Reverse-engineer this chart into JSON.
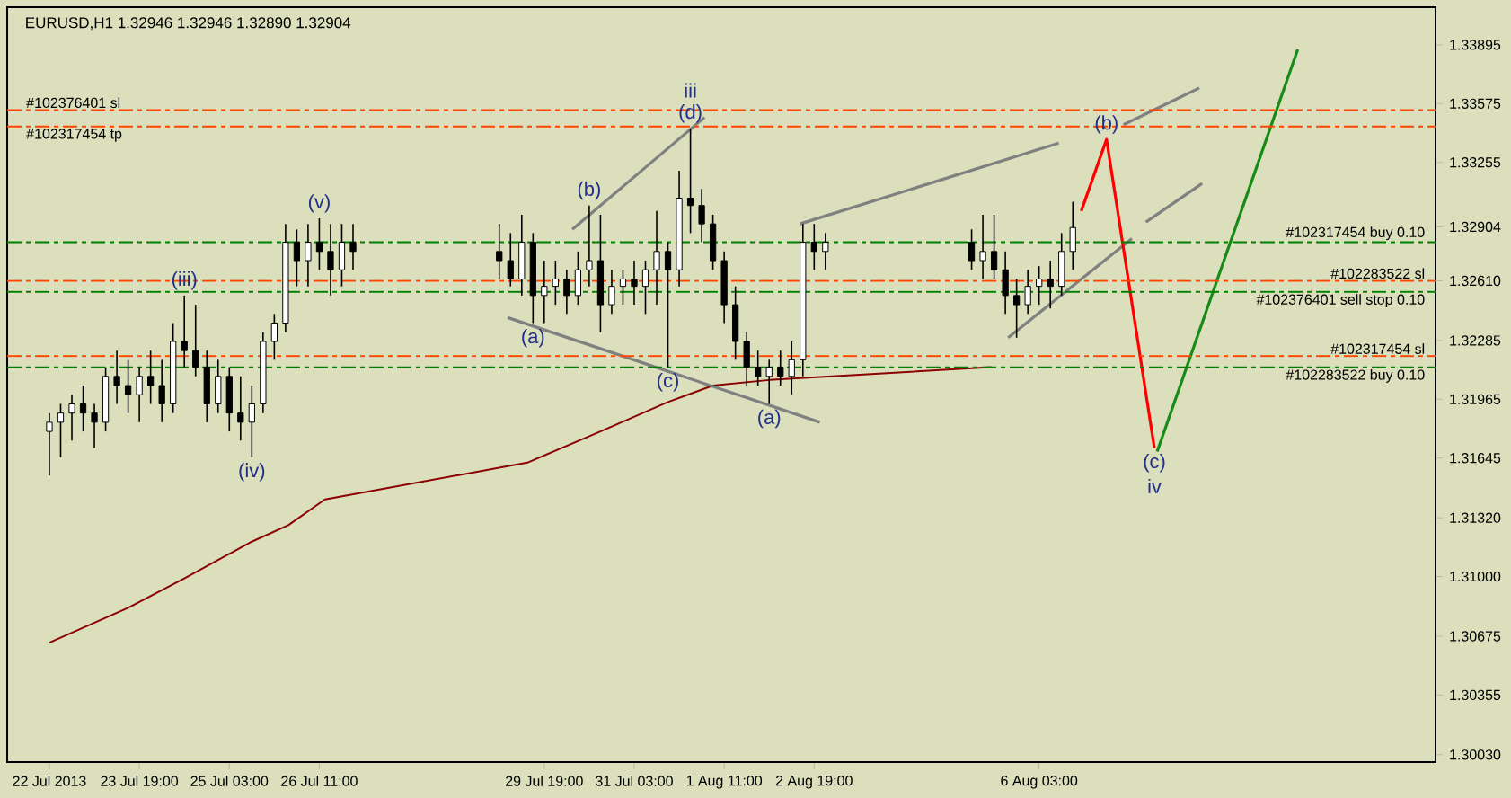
{
  "chart_data": {
    "type": "candlestick",
    "title": "EURUSD,H1  1.32946 1.32946 1.32890 1.32904",
    "color": "#000000",
    "x": [
      "2013-07-22T11:00",
      "2013-07-22T15:00",
      "2013-07-22T19:00",
      "2013-07-22T23:00",
      "2013-07-23T03:00",
      "2013-07-23T07:00",
      "2013-07-23T11:00",
      "2013-07-23T15:00",
      "2013-07-23T19:00",
      "2013-07-23T23:00",
      "2013-07-24T03:00",
      "2013-07-24T07:00",
      "2013-07-24T11:00",
      "2013-07-24T15:00",
      "2013-07-24T19:00",
      "2013-07-24T23:00",
      "2013-07-25T03:00",
      "2013-07-25T07:00",
      "2013-07-25T11:00",
      "2013-07-25T15:00",
      "2013-07-25T19:00",
      "2013-07-25T23:00",
      "2013-07-26T03:00",
      "2013-07-26T07:00",
      "2013-07-26T11:00",
      "2013-07-26T15:00",
      "2013-07-26T19:00",
      "2013-07-26T23:00",
      "2013-07-29T03:00",
      "2013-07-29T07:00",
      "2013-07-29T11:00",
      "2013-07-29T15:00",
      "2013-07-29T19:00",
      "2013-07-29T23:00",
      "2013-07-30T03:00",
      "2013-07-30T07:00",
      "2013-07-30T11:00",
      "2013-07-30T15:00",
      "2013-07-30T19:00",
      "2013-07-30T23:00",
      "2013-07-31T03:00",
      "2013-07-31T07:00",
      "2013-07-31T11:00",
      "2013-07-31T15:00",
      "2013-07-31T19:00",
      "2013-07-31T23:00",
      "2013-08-01T03:00",
      "2013-08-01T07:00",
      "2013-08-01T11:00",
      "2013-08-01T15:00",
      "2013-08-01T19:00",
      "2013-08-01T23:00",
      "2013-08-02T03:00",
      "2013-08-02T07:00",
      "2013-08-02T11:00",
      "2013-08-02T15:00",
      "2013-08-02T19:00",
      "2013-08-02T23:00",
      "2013-08-05T03:00",
      "2013-08-05T07:00",
      "2013-08-05T11:00",
      "2013-08-05T15:00",
      "2013-08-05T19:00",
      "2013-08-05T23:00",
      "2013-08-06T03:00",
      "2013-08-06T07:00",
      "2013-08-06T11:00",
      "2013-08-06T15:00"
    ],
    "ohlc": [
      [
        1.3179,
        1.3189,
        1.3155,
        1.3184
      ],
      [
        1.3184,
        1.3194,
        1.3165,
        1.3189
      ],
      [
        1.3189,
        1.3199,
        1.3174,
        1.3194
      ],
      [
        1.3194,
        1.3204,
        1.3179,
        1.3189
      ],
      [
        1.3189,
        1.3194,
        1.317,
        1.3184
      ],
      [
        1.3184,
        1.3214,
        1.3179,
        1.3209
      ],
      [
        1.3209,
        1.3223,
        1.3194,
        1.3204
      ],
      [
        1.3204,
        1.3218,
        1.3189,
        1.3199
      ],
      [
        1.3199,
        1.3214,
        1.3184,
        1.3209
      ],
      [
        1.3209,
        1.3223,
        1.3194,
        1.3204
      ],
      [
        1.3204,
        1.3218,
        1.3184,
        1.3194
      ],
      [
        1.3194,
        1.3238,
        1.3189,
        1.3228
      ],
      [
        1.3228,
        1.3253,
        1.3214,
        1.3223
      ],
      [
        1.3223,
        1.3248,
        1.3209,
        1.3214
      ],
      [
        1.3214,
        1.3223,
        1.3184,
        1.3194
      ],
      [
        1.3194,
        1.3218,
        1.3189,
        1.3209
      ],
      [
        1.3209,
        1.3214,
        1.3179,
        1.3189
      ],
      [
        1.3189,
        1.3209,
        1.3174,
        1.3184
      ],
      [
        1.3184,
        1.3204,
        1.3165,
        1.3194
      ],
      [
        1.3194,
        1.3233,
        1.3189,
        1.3228
      ],
      [
        1.3228,
        1.3243,
        1.3218,
        1.3238
      ],
      [
        1.3238,
        1.3292,
        1.3233,
        1.3282
      ],
      [
        1.3282,
        1.3289,
        1.3258,
        1.3272
      ],
      [
        1.3272,
        1.3292,
        1.3258,
        1.3282
      ],
      [
        1.3282,
        1.3295,
        1.3267,
        1.3277
      ],
      [
        1.3277,
        1.3292,
        1.3253,
        1.3267
      ],
      [
        1.3267,
        1.3292,
        1.3258,
        1.3282
      ],
      [
        1.3282,
        1.3292,
        1.3267,
        1.3277
      ],
      [
        1.3277,
        1.3292,
        1.3262,
        1.3272
      ],
      [
        1.3272,
        1.3287,
        1.3258,
        1.3262
      ],
      [
        1.3262,
        1.3297,
        1.3253,
        1.3282
      ],
      [
        1.3282,
        1.3287,
        1.3238,
        1.3253
      ],
      [
        1.3253,
        1.3272,
        1.3238,
        1.3258
      ],
      [
        1.3258,
        1.3272,
        1.3248,
        1.3262
      ],
      [
        1.3262,
        1.3267,
        1.3243,
        1.3253
      ],
      [
        1.3253,
        1.3277,
        1.3248,
        1.3267
      ],
      [
        1.3267,
        1.3302,
        1.3258,
        1.3272
      ],
      [
        1.3272,
        1.3297,
        1.3233,
        1.3248
      ],
      [
        1.3248,
        1.3267,
        1.3243,
        1.3258
      ],
      [
        1.3258,
        1.3267,
        1.3248,
        1.3262
      ],
      [
        1.3262,
        1.3272,
        1.3248,
        1.3258
      ],
      [
        1.3258,
        1.3272,
        1.3243,
        1.3267
      ],
      [
        1.3267,
        1.3299,
        1.3248,
        1.3277
      ],
      [
        1.3277,
        1.3282,
        1.3214,
        1.3267
      ],
      [
        1.3267,
        1.3321,
        1.3258,
        1.3306
      ],
      [
        1.3306,
        1.3344,
        1.3287,
        1.3302
      ],
      [
        1.3302,
        1.3311,
        1.3282,
        1.3292
      ],
      [
        1.3292,
        1.3297,
        1.3267,
        1.3272
      ],
      [
        1.3272,
        1.3277,
        1.3238,
        1.3248
      ],
      [
        1.3248,
        1.3258,
        1.3218,
        1.3228
      ],
      [
        1.3228,
        1.3233,
        1.3204,
        1.3214
      ],
      [
        1.3214,
        1.3223,
        1.3204,
        1.3209
      ],
      [
        1.3209,
        1.3218,
        1.3194,
        1.3214
      ],
      [
        1.3214,
        1.3223,
        1.3204,
        1.3209
      ],
      [
        1.3209,
        1.3228,
        1.3199,
        1.3218
      ],
      [
        1.3218,
        1.3292,
        1.3209,
        1.3282
      ],
      [
        1.3282,
        1.3292,
        1.3267,
        1.3277
      ],
      [
        1.3277,
        1.3287,
        1.3267,
        1.3282
      ],
      [
        1.3282,
        1.3289,
        1.3267,
        1.3272
      ],
      [
        1.3272,
        1.3297,
        1.3262,
        1.3277
      ],
      [
        1.3277,
        1.3297,
        1.3262,
        1.3267
      ],
      [
        1.3267,
        1.3277,
        1.3243,
        1.3253
      ],
      [
        1.3253,
        1.3262,
        1.323,
        1.3248
      ],
      [
        1.3248,
        1.3267,
        1.3243,
        1.3258
      ],
      [
        1.3258,
        1.3269,
        1.3248,
        1.3262
      ],
      [
        1.3262,
        1.3272,
        1.3246,
        1.3258
      ],
      [
        1.3258,
        1.3287,
        1.3253,
        1.3277
      ],
      [
        1.3277,
        1.3304,
        1.3267,
        1.329
      ]
    ],
    "series": [
      {
        "type": "line",
        "color": "#8b0000",
        "x": [
          "2013-07-22T11:00",
          "2013-07-23T15:00",
          "2013-07-24T11:00",
          "2013-07-25T11:00",
          "2013-07-26T00:00",
          "2013-07-26T13:00",
          "2013-07-29T13:00",
          "2013-07-30T15:00",
          "2013-07-31T15:00",
          "2013-08-01T07:00",
          "2013-08-02T03:00",
          "2013-08-05T10:00"
        ],
        "values": [
          1.3064,
          1.3083,
          1.3099,
          1.3119,
          1.3128,
          1.3142,
          1.3162,
          1.3179,
          1.3195,
          1.3204,
          1.3207,
          1.3214
        ]
      },
      {
        "type": "line",
        "color": "#808080",
        "x": [
          "2013-07-29T06:00",
          "2013-08-02T21:00"
        ],
        "values": [
          1.3241,
          1.3184
        ]
      },
      {
        "type": "line",
        "color": "#808080",
        "x": [
          "2013-07-30T05:00",
          "2013-08-01T04:00"
        ],
        "values": [
          1.3289,
          1.335
        ]
      },
      {
        "type": "line",
        "color": "#808080",
        "x": [
          "2013-08-02T14:00",
          "2013-08-06T10:00"
        ],
        "values": [
          1.3292,
          1.3336
        ]
      },
      {
        "type": "line",
        "color": "#808080",
        "x": [
          "2013-08-07T09:00",
          "2013-08-08T12:00"
        ],
        "values": [
          1.3346,
          1.3366
        ]
      },
      {
        "type": "line",
        "color": "#808080",
        "x": [
          "2013-08-05T16:00",
          "2013-08-07T12:00"
        ],
        "values": [
          1.323,
          1.3284
        ]
      },
      {
        "type": "line",
        "color": "#808080",
        "x": [
          "2013-08-07T17:00",
          "2013-08-08T13:00"
        ],
        "values": [
          1.3293,
          1.3314
        ]
      },
      {
        "type": "line",
        "color": "#ff0000",
        "x": [
          "2013-08-06T18:00",
          "2013-08-07T03:00",
          "2013-08-07T20:00"
        ],
        "values": [
          1.3299,
          1.3338,
          1.317
        ]
      },
      {
        "type": "line",
        "color": "#168c16",
        "x": [
          "2013-08-07T21:00",
          "2013-08-09T23:00"
        ],
        "values": [
          1.3168,
          1.3387
        ]
      }
    ],
    "ref_lines": [
      {
        "axis": "y",
        "value": 1.3354,
        "label": "#102376401 sl",
        "color": "#ff4500",
        "line_style": "dashdot"
      },
      {
        "axis": "y",
        "value": 1.3345,
        "label": "#102317454 tp",
        "color": "#ff4500",
        "line_style": "dashdot"
      },
      {
        "axis": "y",
        "value": 1.3282,
        "label": "#102317454 buy 0.10",
        "color": "#008000",
        "line_style": "dashdot"
      },
      {
        "axis": "y",
        "value": 1.3261,
        "label": "#102283522 sl",
        "color": "#ff4500",
        "line_style": "dashdot"
      },
      {
        "axis": "y",
        "value": 1.3255,
        "label": "#102376401 sell stop 0.10",
        "color": "#008000",
        "line_style": "dashdot"
      },
      {
        "axis": "y",
        "value": 1.322,
        "label": "#102317454 sl",
        "color": "#ff4500",
        "line_style": "dashdot"
      },
      {
        "axis": "y",
        "value": 1.3214,
        "label": "#102283522 buy 0.10",
        "color": "#008000",
        "line_style": "dashdot"
      }
    ],
    "annotations": [
      {
        "text": "(iii)",
        "x": "2013-07-24T11:00",
        "y": 1.3253
      },
      {
        "text": "(iv)",
        "x": "2013-07-25T11:00",
        "y": 1.3165
      },
      {
        "text": "(v)",
        "x": "2013-07-26T11:00",
        "y": 1.3295
      },
      {
        "text": "(a)",
        "x": "2013-07-29T15:00",
        "y": 1.3238
      },
      {
        "text": "(b)",
        "x": "2013-07-30T11:00",
        "y": 1.3302
      },
      {
        "text": "(c)",
        "x": "2013-07-31T15:00",
        "y": 1.3214
      },
      {
        "text": "(d)",
        "x": "2013-07-31T23:00",
        "y": 1.3344
      },
      {
        "text": "iii",
        "x": "2013-07-31T23:00",
        "y": 1.3344
      },
      {
        "text": "(a)",
        "x": "2013-08-02T03:00",
        "y": 1.3194
      },
      {
        "text": "(b)",
        "x": "2013-08-07T03:00",
        "y": 1.3338
      },
      {
        "text": "(c)",
        "x": "2013-08-07T20:00",
        "y": 1.317
      },
      {
        "text": "iv",
        "x": "2013-08-07T20:00",
        "y": 1.317
      }
    ],
    "xlim": [
      "2013-07-21T20:00",
      "2013-08-12T00:00"
    ],
    "xticks": [
      {
        "value": "2013-07-22T11:00",
        "label": "22 Jul 2013"
      },
      {
        "value": "2013-07-23T19:00",
        "label": "23 Jul 19:00"
      },
      {
        "value": "2013-07-25T03:00",
        "label": "25 Jul 03:00"
      },
      {
        "value": "2013-07-26T11:00",
        "label": "26 Jul 11:00"
      },
      {
        "value": "2013-07-29T19:00",
        "label": "29 Jul 19:00"
      },
      {
        "value": "2013-07-31T03:00",
        "label": "31 Jul 03:00"
      },
      {
        "value": "2013-08-01T11:00",
        "label": "1 Aug 11:00"
      },
      {
        "value": "2013-08-02T19:00",
        "label": "2 Aug 19:00"
      },
      {
        "value": "2013-08-06T03:00",
        "label": "6 Aug 03:00"
      }
    ],
    "ylim": [
      1.2999,
      1.341
    ],
    "yticks": [
      {
        "value": 1.3003,
        "label": "1.30030"
      },
      {
        "value": 1.30355,
        "label": "1.30355"
      },
      {
        "value": 1.30675,
        "label": "1.30675"
      },
      {
        "value": 1.31,
        "label": "1.31000"
      },
      {
        "value": 1.3132,
        "label": "1.31320"
      },
      {
        "value": 1.31645,
        "label": "1.31645"
      },
      {
        "value": 1.31965,
        "label": "1.31965"
      },
      {
        "value": 1.32285,
        "label": "1.32285"
      },
      {
        "value": 1.3261,
        "label": "1.32610"
      },
      {
        "value": 1.32904,
        "label": "1.32904"
      },
      {
        "value": 1.33255,
        "label": "1.33255"
      },
      {
        "value": 1.33575,
        "label": "1.33575"
      },
      {
        "value": 1.33895,
        "label": "1.33895"
      }
    ]
  }
}
